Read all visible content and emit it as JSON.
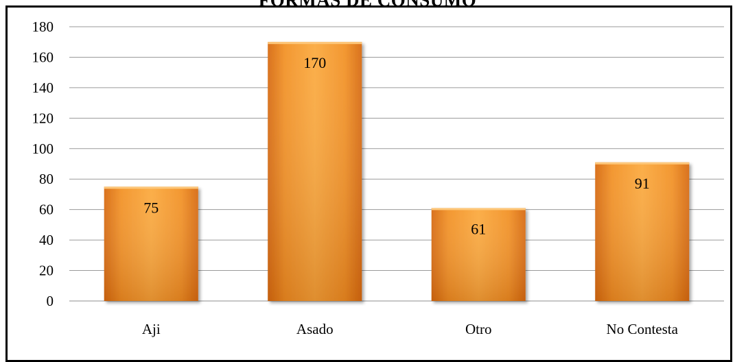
{
  "chart_data": {
    "type": "bar",
    "title": "FORMAS DE CONSUMO",
    "categories": [
      "Aji",
      "Asado",
      "Otro",
      "No Contesta"
    ],
    "values": [
      75,
      170,
      61,
      91
    ],
    "data_labels": [
      "75",
      "170",
      "61",
      "91"
    ],
    "y_ticks": [
      0,
      20,
      40,
      60,
      80,
      100,
      120,
      140,
      160,
      180
    ],
    "ylim": [
      0,
      180
    ],
    "xlabel": "",
    "ylabel": "",
    "grid": true,
    "legend": "none",
    "bar_color": "#F39A2B",
    "bar_color_dark": "#E07A17",
    "bar_color_light": "#FBB85A"
  }
}
